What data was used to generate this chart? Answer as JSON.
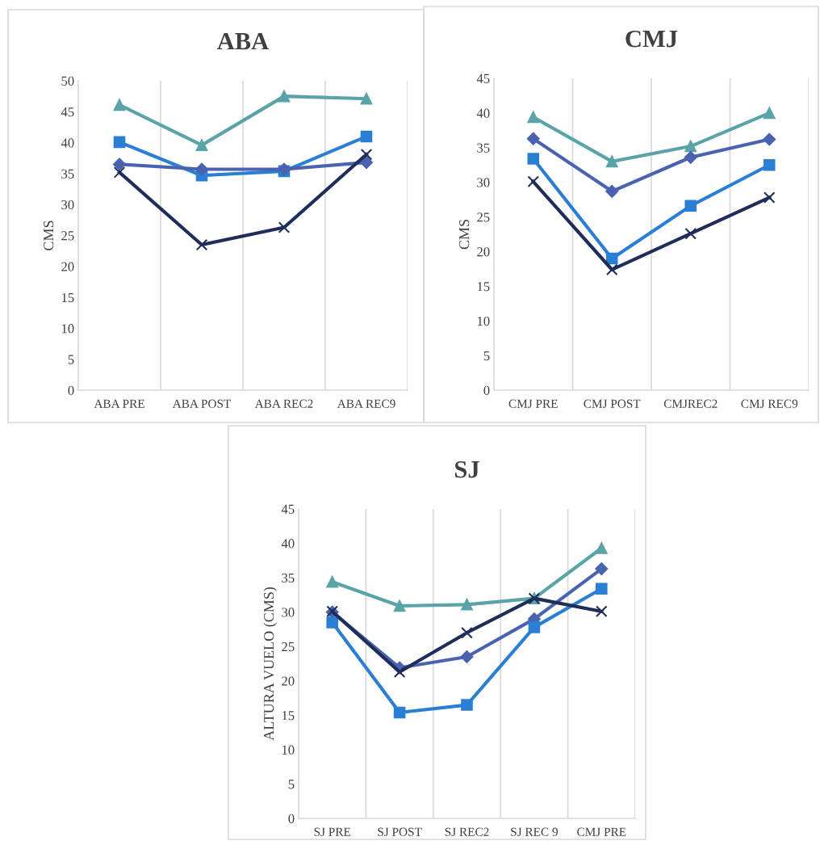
{
  "chart_data": [
    {
      "type": "line",
      "title": "ABA",
      "ylabel": "CMS",
      "categories": [
        "ABA PRE",
        "ABA POST",
        "ABA REC2",
        "ABA REC9"
      ],
      "ylim": [
        0,
        50
      ],
      "yticks": [
        0,
        5,
        10,
        15,
        20,
        25,
        30,
        35,
        40,
        45,
        50
      ],
      "grid": "x",
      "series": [
        {
          "color": "#5aa3a8",
          "marker": "triangle",
          "values": [
            46.1,
            39.6,
            47.5,
            47.1
          ]
        },
        {
          "color": "#2a7fd4",
          "marker": "square",
          "values": [
            40.1,
            34.7,
            35.4,
            41.0
          ]
        },
        {
          "color": "#4a62b0",
          "marker": "diamond",
          "values": [
            36.5,
            35.7,
            35.7,
            36.8
          ]
        },
        {
          "color": "#1f2d5a",
          "marker": "cross",
          "values": [
            35.2,
            23.5,
            26.3,
            38.1
          ]
        }
      ]
    },
    {
      "type": "line",
      "title": "CMJ",
      "ylabel": "CMS",
      "categories": [
        "CMJ PRE",
        "CMJ POST",
        "CMJREC2",
        "CMJ REC9"
      ],
      "ylim": [
        0,
        45
      ],
      "yticks": [
        0,
        5,
        10,
        15,
        20,
        25,
        30,
        35,
        40,
        45
      ],
      "grid": "x",
      "series": [
        {
          "color": "#5aa3a8",
          "marker": "triangle",
          "values": [
            39.4,
            33.0,
            35.2,
            40.0
          ]
        },
        {
          "color": "#4a62b0",
          "marker": "diamond",
          "values": [
            36.3,
            28.7,
            33.6,
            36.2
          ]
        },
        {
          "color": "#2a7fd4",
          "marker": "square",
          "values": [
            33.4,
            19.0,
            26.6,
            32.5
          ]
        },
        {
          "color": "#1f2d5a",
          "marker": "cross",
          "values": [
            30.1,
            17.4,
            22.6,
            27.8
          ]
        }
      ]
    },
    {
      "type": "line",
      "title": "SJ",
      "ylabel": "ALTURA VUELO (CMS)",
      "categories": [
        "SJ PRE",
        "SJ POST",
        "SJ REC2",
        "SJ REC 9",
        "CMJ PRE"
      ],
      "ylim": [
        0,
        45
      ],
      "yticks": [
        0,
        5,
        10,
        15,
        20,
        25,
        30,
        35,
        40,
        45
      ],
      "grid": "x",
      "series": [
        {
          "color": "#5aa3a8",
          "marker": "triangle",
          "values": [
            34.4,
            30.9,
            31.1,
            32.0,
            39.3
          ]
        },
        {
          "color": "#4a62b0",
          "marker": "diamond",
          "values": [
            30.0,
            21.9,
            23.5,
            29.0,
            36.3
          ]
        },
        {
          "color": "#2a7fd4",
          "marker": "square",
          "values": [
            28.5,
            15.4,
            16.5,
            27.8,
            33.4
          ]
        },
        {
          "color": "#1f2d5a",
          "marker": "cross",
          "values": [
            30.1,
            21.3,
            27.0,
            32.0,
            30.1
          ]
        }
      ]
    }
  ]
}
